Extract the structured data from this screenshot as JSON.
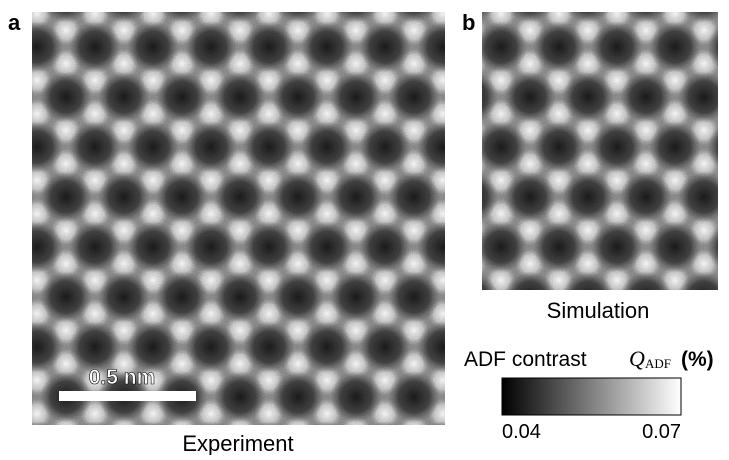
{
  "panels": [
    {
      "label": "a",
      "caption": "Experiment",
      "scalebar": "0.5 nm"
    },
    {
      "label": "b",
      "caption": "Simulation"
    }
  ],
  "colorbar": {
    "title": "ADF contrast",
    "symbol": "Q",
    "subscript": "ADF",
    "unit": "(%)",
    "range": [
      0.04,
      0.07
    ],
    "ticks": [
      0.04,
      0.07
    ]
  }
}
